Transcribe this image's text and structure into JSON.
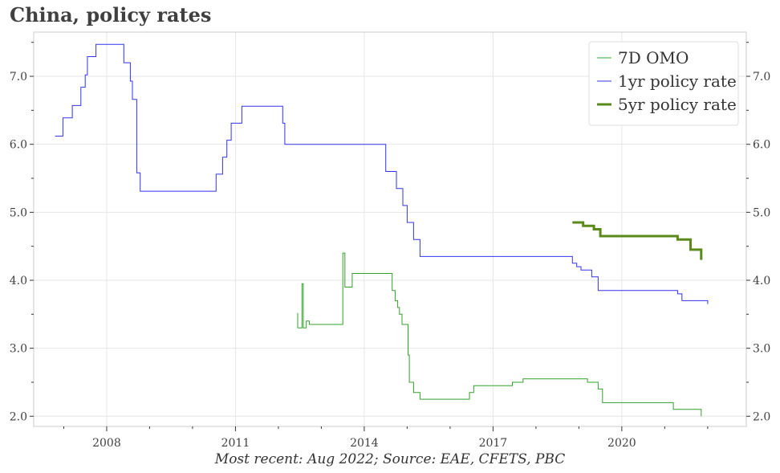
{
  "title": "China, policy rates",
  "footer": "Most recent: Aug 2022; Source: EAE, CFETS, PBC",
  "chart_data": {
    "type": "line",
    "title": "China, policy rates",
    "xlabel": "",
    "ylabel": "",
    "xlim": [
      2006.3,
      2022.9
    ],
    "ylim": [
      1.85,
      7.65
    ],
    "x_ticks": [
      2008,
      2011,
      2014,
      2017,
      2020
    ],
    "y_ticks": [
      2.0,
      3.0,
      4.0,
      5.0,
      6.0,
      7.0
    ],
    "y_tick_labels": [
      "2.0",
      "3.0",
      "4.0",
      "5.0",
      "6.0",
      "7.0"
    ],
    "grid": true,
    "y_axis_both_sides": true,
    "legend_position": "top-right",
    "series": [
      {
        "name": "7D OMO",
        "color": "#33a02c",
        "width": 1,
        "points": [
          [
            2012.45,
            3.52
          ],
          [
            2012.45,
            3.3
          ],
          [
            2012.55,
            3.3
          ],
          [
            2012.55,
            3.95
          ],
          [
            2012.58,
            3.95
          ],
          [
            2012.58,
            3.3
          ],
          [
            2012.65,
            3.3
          ],
          [
            2012.65,
            3.4
          ],
          [
            2012.72,
            3.4
          ],
          [
            2012.72,
            3.35
          ],
          [
            2013.5,
            3.35
          ],
          [
            2013.5,
            4.4
          ],
          [
            2013.55,
            4.4
          ],
          [
            2013.55,
            3.9
          ],
          [
            2013.72,
            3.9
          ],
          [
            2013.72,
            4.1
          ],
          [
            2014.65,
            4.1
          ],
          [
            2014.65,
            3.85
          ],
          [
            2014.72,
            3.85
          ],
          [
            2014.72,
            3.7
          ],
          [
            2014.78,
            3.7
          ],
          [
            2014.78,
            3.6
          ],
          [
            2014.82,
            3.6
          ],
          [
            2014.82,
            3.5
          ],
          [
            2014.88,
            3.5
          ],
          [
            2014.88,
            3.35
          ],
          [
            2015.02,
            3.35
          ],
          [
            2015.02,
            2.9
          ],
          [
            2015.05,
            2.9
          ],
          [
            2015.05,
            2.5
          ],
          [
            2015.15,
            2.5
          ],
          [
            2015.15,
            2.35
          ],
          [
            2015.3,
            2.35
          ],
          [
            2015.3,
            2.25
          ],
          [
            2016.45,
            2.25
          ],
          [
            2016.45,
            2.35
          ],
          [
            2016.55,
            2.35
          ],
          [
            2016.55,
            2.45
          ],
          [
            2017.45,
            2.45
          ],
          [
            2017.45,
            2.5
          ],
          [
            2017.7,
            2.5
          ],
          [
            2017.7,
            2.55
          ],
          [
            2019.2,
            2.55
          ],
          [
            2019.2,
            2.5
          ],
          [
            2019.45,
            2.5
          ],
          [
            2019.45,
            2.4
          ],
          [
            2019.55,
            2.4
          ],
          [
            2019.55,
            2.2
          ],
          [
            2021.2,
            2.2
          ],
          [
            2021.2,
            2.1
          ],
          [
            2021.85,
            2.1
          ],
          [
            2021.85,
            2.0
          ]
        ]
      },
      {
        "name": "1yr policy rate",
        "color": "#3333ee",
        "width": 1,
        "points": [
          [
            2006.8,
            6.12
          ],
          [
            2006.98,
            6.12
          ],
          [
            2006.98,
            6.39
          ],
          [
            2007.2,
            6.39
          ],
          [
            2007.2,
            6.57
          ],
          [
            2007.4,
            6.57
          ],
          [
            2007.4,
            6.84
          ],
          [
            2007.5,
            6.84
          ],
          [
            2007.5,
            7.02
          ],
          [
            2007.55,
            7.02
          ],
          [
            2007.55,
            7.29
          ],
          [
            2007.75,
            7.29
          ],
          [
            2007.75,
            7.47
          ],
          [
            2008.4,
            7.47
          ],
          [
            2008.4,
            7.2
          ],
          [
            2008.55,
            7.2
          ],
          [
            2008.55,
            6.93
          ],
          [
            2008.6,
            6.93
          ],
          [
            2008.6,
            6.66
          ],
          [
            2008.7,
            6.66
          ],
          [
            2008.7,
            5.58
          ],
          [
            2008.78,
            5.58
          ],
          [
            2008.78,
            5.31
          ],
          [
            2010.55,
            5.31
          ],
          [
            2010.55,
            5.56
          ],
          [
            2010.7,
            5.56
          ],
          [
            2010.7,
            5.81
          ],
          [
            2010.8,
            5.81
          ],
          [
            2010.8,
            6.06
          ],
          [
            2010.9,
            6.06
          ],
          [
            2010.9,
            6.31
          ],
          [
            2011.15,
            6.31
          ],
          [
            2011.15,
            6.56
          ],
          [
            2012.1,
            6.56
          ],
          [
            2012.1,
            6.31
          ],
          [
            2012.15,
            6.31
          ],
          [
            2012.15,
            6.0
          ],
          [
            2014.5,
            6.0
          ],
          [
            2014.5,
            5.6
          ],
          [
            2014.75,
            5.6
          ],
          [
            2014.75,
            5.35
          ],
          [
            2014.9,
            5.35
          ],
          [
            2014.9,
            5.1
          ],
          [
            2015.0,
            5.1
          ],
          [
            2015.0,
            4.85
          ],
          [
            2015.15,
            4.85
          ],
          [
            2015.15,
            4.6
          ],
          [
            2015.3,
            4.6
          ],
          [
            2015.3,
            4.35
          ],
          [
            2018.85,
            4.35
          ],
          [
            2018.85,
            4.25
          ],
          [
            2018.95,
            4.25
          ],
          [
            2018.95,
            4.2
          ],
          [
            2019.05,
            4.2
          ],
          [
            2019.05,
            4.15
          ],
          [
            2019.3,
            4.15
          ],
          [
            2019.3,
            4.05
          ],
          [
            2019.45,
            4.05
          ],
          [
            2019.45,
            3.85
          ],
          [
            2021.3,
            3.85
          ],
          [
            2021.3,
            3.8
          ],
          [
            2021.4,
            3.8
          ],
          [
            2021.4,
            3.7
          ],
          [
            2022.0,
            3.7
          ],
          [
            2022.0,
            3.65
          ]
        ]
      },
      {
        "name": "5yr policy rate",
        "color": "#5a8a1a",
        "width": 3,
        "points": [
          [
            2018.85,
            4.85
          ],
          [
            2019.1,
            4.85
          ],
          [
            2019.1,
            4.8
          ],
          [
            2019.35,
            4.8
          ],
          [
            2019.35,
            4.75
          ],
          [
            2019.5,
            4.75
          ],
          [
            2019.5,
            4.65
          ],
          [
            2021.3,
            4.65
          ],
          [
            2021.3,
            4.6
          ],
          [
            2021.6,
            4.6
          ],
          [
            2021.6,
            4.45
          ],
          [
            2021.85,
            4.45
          ],
          [
            2021.85,
            4.3
          ]
        ]
      }
    ]
  }
}
